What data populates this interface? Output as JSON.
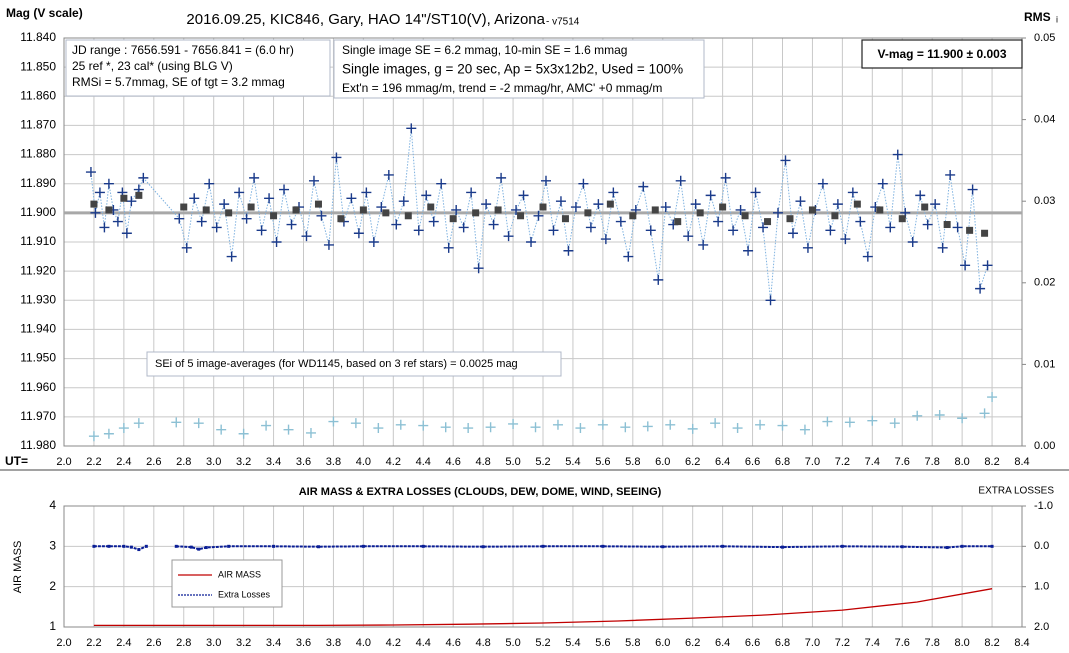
{
  "chart_data": [
    {
      "type": "scatter",
      "title": "2016.09.25, KIC846, Gary, HAO 14\"/ST10(V), Arizona",
      "subtitle": " - v7514",
      "y_label": "Mag (V scale)",
      "y2_label": "RMS",
      "y2_label_sub": "i",
      "x_label": "UT=",
      "info_left": [
        "JD range : 7656.591 - 7656.841 = (6.0 hr)",
        "25 ref *, 23 cal* (using BLG V)",
        "RMSi = 5.7mmag, SE of tgt = 3.2 mmag"
      ],
      "info_mid": [
        "Single image SE = 6.2 mmag, 10-min SE = 1.6 mmag",
        "Single images, g = 20 sec, Ap = 5x3x12b2, Used = 100%",
        "Ext'n = 196 mmag/m, trend = -2 mmag/hr, AMC' +0 mmag/m"
      ],
      "vmag": {
        "value": 11.9,
        "label": "V-mag = 11.900 ± 0.003"
      },
      "annotation": "SEi of 5 image-averages (for WD1145, based on 3 ref stars) = 0.0025 mag",
      "grid": true,
      "xlim": [
        2.0,
        8.4
      ],
      "xticks": [
        {
          "value": 2.0,
          "label": "2.0"
        },
        {
          "value": 2.2,
          "label": "2.2"
        },
        {
          "value": 2.4,
          "label": "2.4"
        },
        {
          "value": 2.6,
          "label": "2.6"
        },
        {
          "value": 2.8,
          "label": "2.8"
        },
        {
          "value": 3.0,
          "label": "3.0"
        },
        {
          "value": 3.2,
          "label": "3.2"
        },
        {
          "value": 3.4,
          "label": "3.4"
        },
        {
          "value": 3.6,
          "label": "3.6"
        },
        {
          "value": 3.8,
          "label": "3.8"
        },
        {
          "value": 4.0,
          "label": "4.0"
        },
        {
          "value": 4.2,
          "label": "4.2"
        },
        {
          "value": 4.4,
          "label": "4.4"
        },
        {
          "value": 4.6,
          "label": "4.6"
        },
        {
          "value": 4.8,
          "label": "4.8"
        },
        {
          "value": 5.0,
          "label": "5.0"
        },
        {
          "value": 5.2,
          "label": "5.2"
        },
        {
          "value": 5.4,
          "label": "5.4"
        },
        {
          "value": 5.6,
          "label": "5.6"
        },
        {
          "value": 5.8,
          "label": "5.8"
        },
        {
          "value": 6.0,
          "label": "6.0"
        },
        {
          "value": 6.2,
          "label": "6.2"
        },
        {
          "value": 6.4,
          "label": "6.4"
        },
        {
          "value": 6.6,
          "label": "6.6"
        },
        {
          "value": 6.8,
          "label": "6.8"
        },
        {
          "value": 7.0,
          "label": "7.0"
        },
        {
          "value": 7.2,
          "label": "7.2"
        },
        {
          "value": 7.4,
          "label": "7.4"
        },
        {
          "value": 7.6,
          "label": "7.6"
        },
        {
          "value": 7.8,
          "label": "7.8"
        },
        {
          "value": 8.0,
          "label": "8.0"
        },
        {
          "value": 8.2,
          "label": "8.2"
        },
        {
          "value": 8.4,
          "label": "8.4"
        }
      ],
      "ylim": [
        11.98,
        11.84
      ],
      "yticks": [
        {
          "value": 11.84,
          "label": "11.840"
        },
        {
          "value": 11.85,
          "label": "11.850"
        },
        {
          "value": 11.86,
          "label": "11.860"
        },
        {
          "value": 11.87,
          "label": "11.870"
        },
        {
          "value": 11.88,
          "label": "11.880"
        },
        {
          "value": 11.89,
          "label": "11.890"
        },
        {
          "value": 11.9,
          "label": "11.900"
        },
        {
          "value": 11.91,
          "label": "11.910"
        },
        {
          "value": 11.92,
          "label": "11.920"
        },
        {
          "value": 11.93,
          "label": "11.930"
        },
        {
          "value": 11.94,
          "label": "11.940"
        },
        {
          "value": 11.95,
          "label": "11.950"
        },
        {
          "value": 11.96,
          "label": "11.960"
        },
        {
          "value": 11.97,
          "label": "11.970"
        },
        {
          "value": 11.98,
          "label": "11.980"
        }
      ],
      "y2lim": [
        0,
        0.05
      ],
      "y2ticks": [
        {
          "value": 0,
          "label": "0.00"
        },
        {
          "value": 0.01,
          "label": "0.01"
        },
        {
          "value": 0.02,
          "label": "0.02"
        },
        {
          "value": 0.03,
          "label": "0.03"
        },
        {
          "value": 0.04,
          "label": "0.04"
        },
        {
          "value": 0.05,
          "label": "0.05"
        }
      ],
      "series": [
        {
          "color": "#1a3a8a",
          "marker": "plus",
          "line": "dotted",
          "line_color": "#7fb2e0",
          "x": [
            2.18,
            2.21,
            2.24,
            2.27,
            2.3,
            2.33,
            2.36,
            2.39,
            2.42,
            2.45,
            2.5,
            2.53,
            2.77,
            2.82,
            2.87,
            2.92,
            2.97,
            3.02,
            3.07,
            3.12,
            3.17,
            3.22,
            3.27,
            3.32,
            3.37,
            3.42,
            3.47,
            3.52,
            3.57,
            3.62,
            3.67,
            3.72,
            3.77,
            3.82,
            3.87,
            3.92,
            3.97,
            4.02,
            4.07,
            4.12,
            4.17,
            4.22,
            4.27,
            4.32,
            4.37,
            4.42,
            4.47,
            4.52,
            4.57,
            4.62,
            4.67,
            4.72,
            4.77,
            4.82,
            4.87,
            4.92,
            4.97,
            5.02,
            5.07,
            5.12,
            5.17,
            5.22,
            5.27,
            5.32,
            5.37,
            5.42,
            5.47,
            5.52,
            5.57,
            5.62,
            5.67,
            5.72,
            5.77,
            5.82,
            5.87,
            5.92,
            5.97,
            6.02,
            6.07,
            6.12,
            6.17,
            6.22,
            6.27,
            6.32,
            6.37,
            6.42,
            6.47,
            6.52,
            6.57,
            6.62,
            6.67,
            6.72,
            6.77,
            6.82,
            6.87,
            6.92,
            6.97,
            7.02,
            7.07,
            7.12,
            7.17,
            7.22,
            7.27,
            7.32,
            7.37,
            7.42,
            7.47,
            7.52,
            7.57,
            7.62,
            7.67,
            7.72,
            7.77,
            7.82,
            7.87,
            7.92,
            7.97,
            8.02,
            8.07,
            8.12,
            8.17
          ],
          "values": [
            11.886,
            11.9,
            11.893,
            11.905,
            11.89,
            11.899,
            11.903,
            11.893,
            11.907,
            11.896,
            11.892,
            11.888,
            11.902,
            11.912,
            11.895,
            11.903,
            11.89,
            11.905,
            11.897,
            11.915,
            11.893,
            11.902,
            11.888,
            11.906,
            11.895,
            11.91,
            11.892,
            11.904,
            11.898,
            11.908,
            11.889,
            11.901,
            11.911,
            11.881,
            11.903,
            11.895,
            11.907,
            11.893,
            11.91,
            11.898,
            11.887,
            11.904,
            11.896,
            11.871,
            11.906,
            11.894,
            11.903,
            11.89,
            11.912,
            11.899,
            11.905,
            11.893,
            11.919,
            11.897,
            11.904,
            11.888,
            11.908,
            11.899,
            11.894,
            11.91,
            11.901,
            11.889,
            11.906,
            11.896,
            11.913,
            11.898,
            11.89,
            11.905,
            11.897,
            11.909,
            11.893,
            11.903,
            11.915,
            11.899,
            11.891,
            11.906,
            11.923,
            11.898,
            11.904,
            11.889,
            11.908,
            11.897,
            11.911,
            11.894,
            11.903,
            11.888,
            11.906,
            11.899,
            11.913,
            11.893,
            11.905,
            11.93,
            11.9,
            11.882,
            11.907,
            11.896,
            11.912,
            11.899,
            11.89,
            11.906,
            11.897,
            11.909,
            11.893,
            11.903,
            11.915,
            11.898,
            11.89,
            11.905,
            11.88,
            11.9,
            11.91,
            11.894,
            11.904,
            11.897,
            11.912,
            11.887,
            11.905,
            11.918,
            11.892,
            11.926,
            11.918
          ]
        },
        {
          "color": "#444444",
          "marker": "square",
          "line": "none",
          "x": [
            2.2,
            2.3,
            2.4,
            2.5,
            2.8,
            2.95,
            3.1,
            3.25,
            3.4,
            3.55,
            3.7,
            3.85,
            4.0,
            4.15,
            4.3,
            4.45,
            4.6,
            4.75,
            4.9,
            5.05,
            5.2,
            5.35,
            5.5,
            5.65,
            5.8,
            5.95,
            6.1,
            6.25,
            6.4,
            6.55,
            6.7,
            6.85,
            7.0,
            7.15,
            7.3,
            7.45,
            7.6,
            7.75,
            7.9,
            8.05,
            8.15
          ],
          "values": [
            11.897,
            11.899,
            11.895,
            11.894,
            11.898,
            11.899,
            11.9,
            11.898,
            11.901,
            11.899,
            11.897,
            11.902,
            11.899,
            11.9,
            11.901,
            11.898,
            11.902,
            11.9,
            11.899,
            11.901,
            11.898,
            11.902,
            11.9,
            11.897,
            11.901,
            11.899,
            11.903,
            11.9,
            11.898,
            11.901,
            11.903,
            11.902,
            11.899,
            11.901,
            11.897,
            11.899,
            11.902,
            11.898,
            11.904,
            11.906,
            11.907
          ]
        },
        {
          "color": "#8cc0d4",
          "marker": "plus",
          "line": "none",
          "axis": "y2",
          "x": [
            2.2,
            2.3,
            2.4,
            2.5,
            2.75,
            2.9,
            3.05,
            3.2,
            3.35,
            3.5,
            3.65,
            3.8,
            3.95,
            4.1,
            4.25,
            4.4,
            4.55,
            4.7,
            4.85,
            5.0,
            5.15,
            5.3,
            5.45,
            5.6,
            5.75,
            5.9,
            6.05,
            6.2,
            6.35,
            6.5,
            6.65,
            6.8,
            6.95,
            7.1,
            7.25,
            7.4,
            7.55,
            7.7,
            7.85,
            8.0,
            8.15,
            8.2
          ],
          "values": [
            0.0012,
            0.0015,
            0.0022,
            0.0028,
            0.0029,
            0.0028,
            0.002,
            0.0015,
            0.0025,
            0.002,
            0.0016,
            0.003,
            0.0028,
            0.0022,
            0.0026,
            0.0025,
            0.0023,
            0.0022,
            0.0023,
            0.0027,
            0.0023,
            0.0026,
            0.0022,
            0.0026,
            0.0023,
            0.0024,
            0.0026,
            0.0021,
            0.0028,
            0.0022,
            0.0026,
            0.0025,
            0.002,
            0.003,
            0.0029,
            0.0031,
            0.0028,
            0.0037,
            0.0038,
            0.0034,
            0.004,
            0.006
          ]
        }
      ]
    },
    {
      "type": "line",
      "title": "AIR MASS & EXTRA LOSSES (CLOUDS, DEW, DOME, WIND, SEEING)",
      "y_label": "AIR MASS",
      "y2_label": "EXTRA LOSSES",
      "grid": true,
      "xlim": [
        2.0,
        8.4
      ],
      "xticks": [
        {
          "value": 2.0,
          "label": "2.0"
        },
        {
          "value": 2.2,
          "label": "2.2"
        },
        {
          "value": 2.4,
          "label": "2.4"
        },
        {
          "value": 2.6,
          "label": "2.6"
        },
        {
          "value": 2.8,
          "label": "2.8"
        },
        {
          "value": 3.0,
          "label": "3.0"
        },
        {
          "value": 3.2,
          "label": "3.2"
        },
        {
          "value": 3.4,
          "label": "3.4"
        },
        {
          "value": 3.6,
          "label": "3.6"
        },
        {
          "value": 3.8,
          "label": "3.8"
        },
        {
          "value": 4.0,
          "label": "4.0"
        },
        {
          "value": 4.2,
          "label": "4.2"
        },
        {
          "value": 4.4,
          "label": "4.4"
        },
        {
          "value": 4.6,
          "label": "4.6"
        },
        {
          "value": 4.8,
          "label": "4.8"
        },
        {
          "value": 5.0,
          "label": "5.0"
        },
        {
          "value": 5.2,
          "label": "5.2"
        },
        {
          "value": 5.4,
          "label": "5.4"
        },
        {
          "value": 5.6,
          "label": "5.6"
        },
        {
          "value": 5.8,
          "label": "5.8"
        },
        {
          "value": 6.0,
          "label": "6.0"
        },
        {
          "value": 6.2,
          "label": "6.2"
        },
        {
          "value": 6.4,
          "label": "6.4"
        },
        {
          "value": 6.6,
          "label": "6.6"
        },
        {
          "value": 6.8,
          "label": "6.8"
        },
        {
          "value": 7.0,
          "label": "7.0"
        },
        {
          "value": 7.2,
          "label": "7.2"
        },
        {
          "value": 7.4,
          "label": "7.4"
        },
        {
          "value": 7.6,
          "label": "7.6"
        },
        {
          "value": 7.8,
          "label": "7.8"
        },
        {
          "value": 8.0,
          "label": "8.0"
        },
        {
          "value": 8.2,
          "label": "8.2"
        },
        {
          "value": 8.4,
          "label": "8.4"
        }
      ],
      "ylim": [
        1,
        4
      ],
      "yticks": [
        1,
        2,
        3,
        4
      ],
      "y2lim": [
        2.0,
        -1.0
      ],
      "y2ticks": [
        {
          "value": -1.0,
          "label": "-1.0"
        },
        {
          "value": 0.0,
          "label": "0.0"
        },
        {
          "value": 1.0,
          "label": "1.0"
        },
        {
          "value": 2.0,
          "label": "2.0"
        }
      ],
      "series": [
        {
          "name": "AIR MASS",
          "color": "#c00000",
          "marker": "none",
          "line": "solid",
          "x": [
            2.2,
            2.7,
            3.2,
            3.7,
            4.2,
            4.7,
            5.2,
            5.7,
            6.2,
            6.7,
            7.2,
            7.7,
            8.2
          ],
          "values": [
            1.04,
            1.04,
            1.04,
            1.04,
            1.05,
            1.07,
            1.1,
            1.15,
            1.22,
            1.3,
            1.42,
            1.62,
            1.95
          ]
        },
        {
          "name": "Extra Losses",
          "color": "#0a1e96",
          "marker": "dot",
          "line": "dashed",
          "axis": "y2",
          "x": [
            2.2,
            2.3,
            2.4,
            2.45,
            2.5,
            2.55,
            2.6,
            2.75,
            2.85,
            2.9,
            2.95,
            3.1,
            3.4,
            3.7,
            4.0,
            4.4,
            4.8,
            5.2,
            5.6,
            6.0,
            6.4,
            6.8,
            7.2,
            7.6,
            7.9,
            8.0,
            8.2
          ],
          "values": [
            0.0,
            0.0,
            0.0,
            0.02,
            0.08,
            0.0,
            null,
            0.0,
            0.02,
            0.07,
            0.03,
            0.0,
            0.0,
            0.01,
            0.0,
            0.0,
            0.01,
            0.0,
            0.0,
            0.01,
            0.0,
            0.02,
            0.0,
            0.01,
            0.03,
            0.0,
            0.0
          ]
        }
      ]
    }
  ]
}
